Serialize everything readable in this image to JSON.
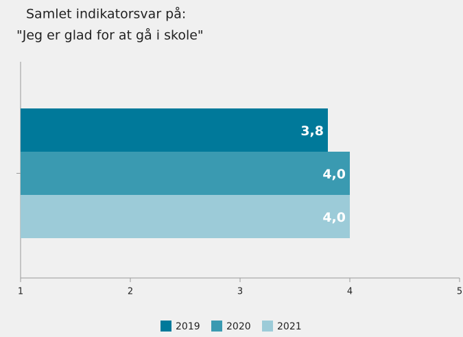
{
  "chart_data": {
    "type": "bar",
    "orientation": "horizontal",
    "title": [
      "Samlet indikatorsvar på:",
      "\"Jeg er glad for at gå i skole\""
    ],
    "categories": [
      null
    ],
    "series": [
      {
        "name": "2019",
        "color": "#00799a",
        "values": [
          3.8
        ],
        "value_labels": [
          "3,8"
        ]
      },
      {
        "name": "2020",
        "color": "#3a9ab1",
        "values": [
          4.0
        ],
        "value_labels": [
          "4,0"
        ]
      },
      {
        "name": "2021",
        "color": "#9ccbd8",
        "values": [
          4.0
        ],
        "value_labels": [
          "4,0"
        ]
      }
    ],
    "xlim": [
      1,
      5
    ],
    "xticks": [
      1,
      2,
      3,
      4,
      5
    ],
    "legend": "bottom"
  }
}
